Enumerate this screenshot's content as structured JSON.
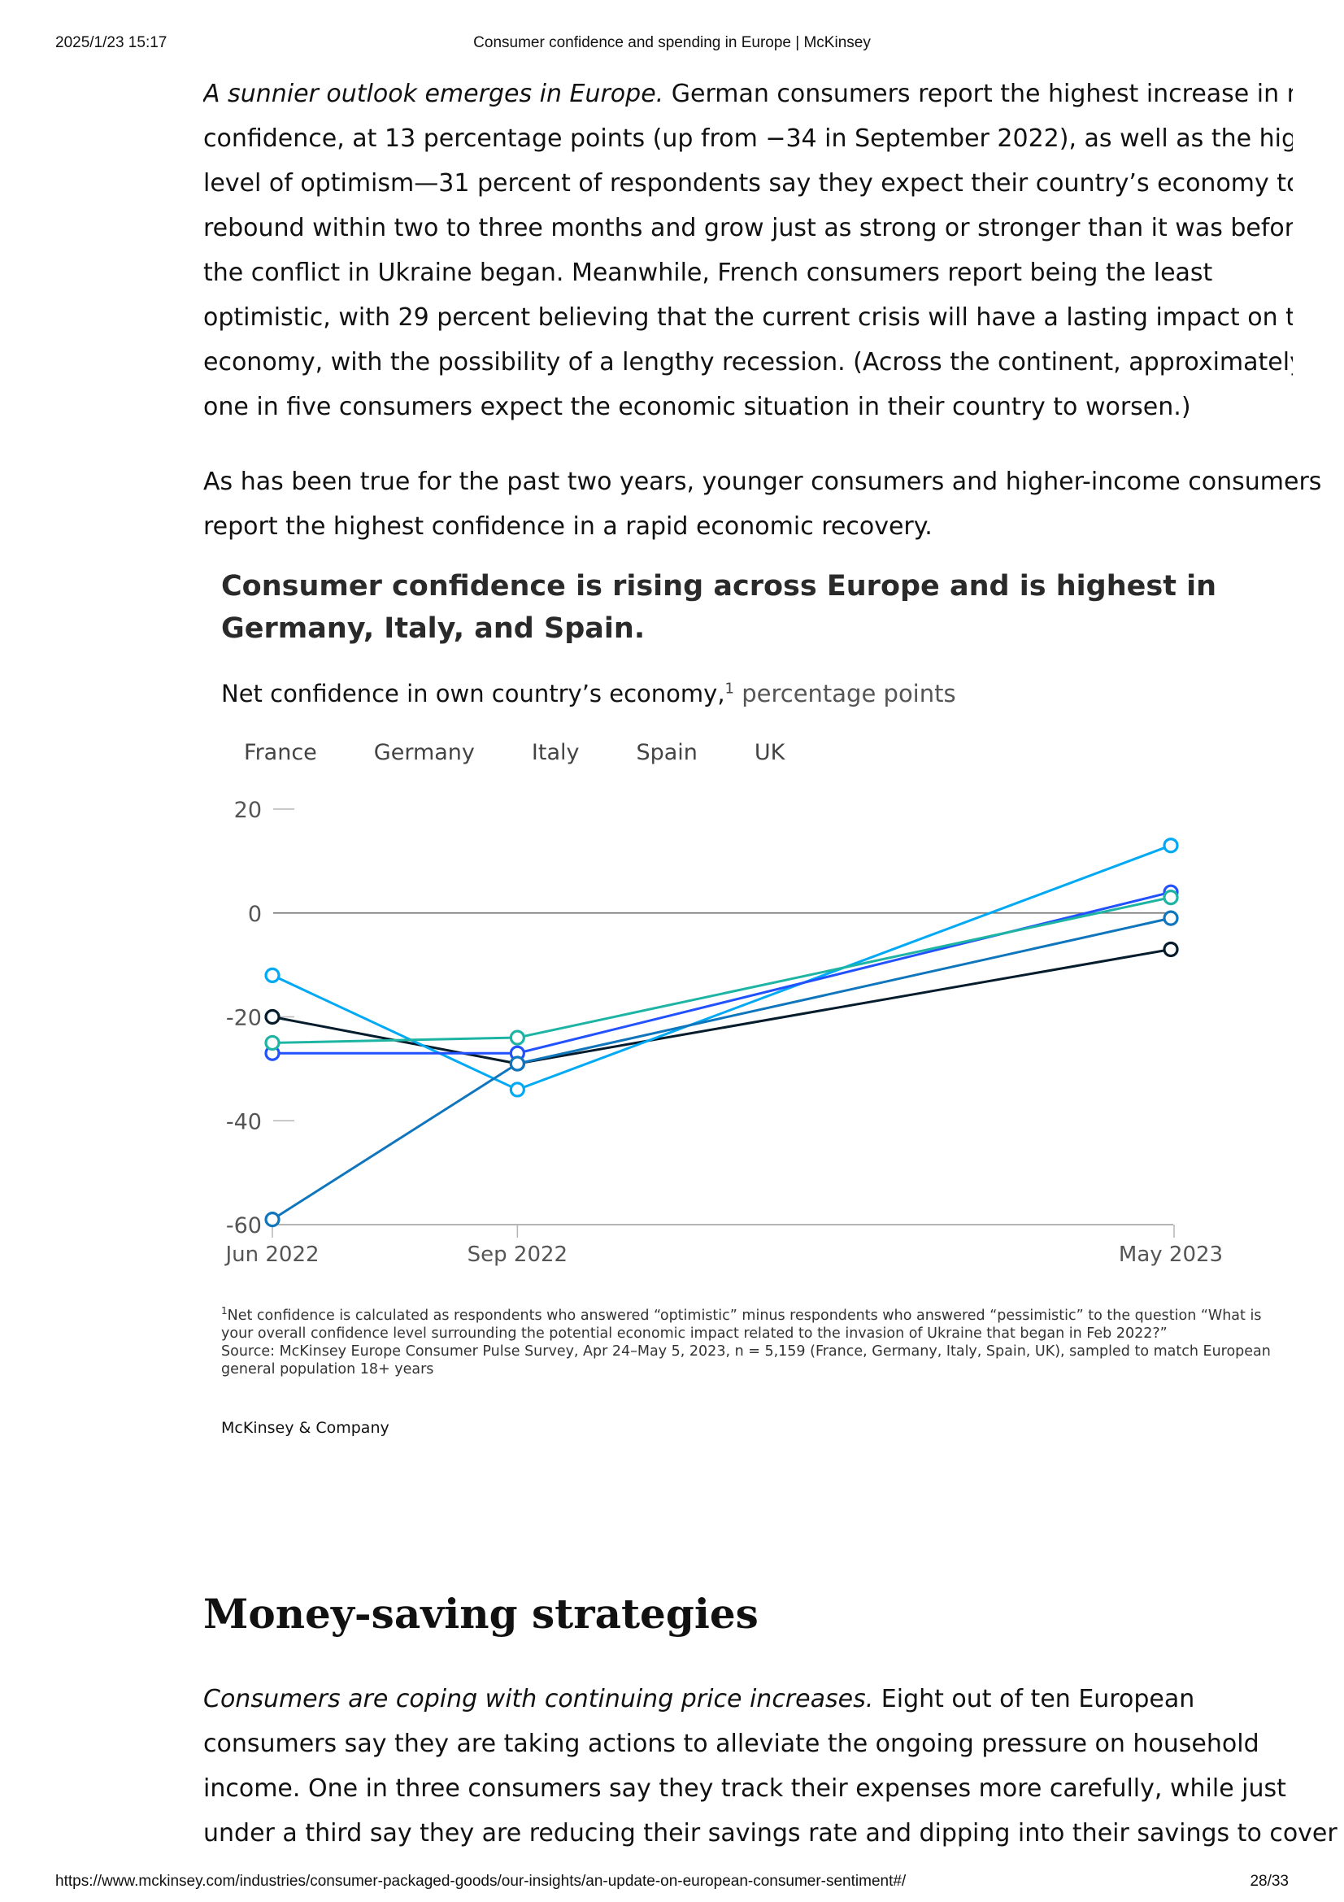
{
  "print_header": {
    "date": "2025/1/23 15:17",
    "title": "Consumer confidence and spending in Europe | McKinsey"
  },
  "print_footer": {
    "url": "https://www.mckinsey.com/industries/consumer-packaged-goods/our-insights/an-update-on-european-consumer-sentiment#/",
    "page": "28/33"
  },
  "article": {
    "p1_lead": "A sunnier outlook emerges in Europe.",
    "p1_line1_rest": " German consumers report the highest increase in net",
    "p1_lines": [
      "confidence, at 13 percentage points (up from −34 in September 2022), as well as the highest",
      "level of optimism—31 percent of respondents say they expect their country’s economy to",
      "rebound within two to three months and grow just as strong or stronger than it was before",
      "the conflict in Ukraine began. Meanwhile, French consumers report being the least",
      "optimistic, with 29 percent believing that the current crisis will have a lasting impact on the",
      "economy, with the possibility of a lengthy recession. (Across the continent, approximately",
      "one in five consumers expect the economic situation in their country to worsen.)"
    ],
    "p2_lines": [
      "As has been true for the past two years, younger consumers and higher-income consumers",
      "report the highest confidence in a rapid economic recovery."
    ],
    "section_heading": "Money-saving strategies",
    "p3_lead": "Consumers are coping with continuing price increases.",
    "p3_line1_rest": " Eight out of ten European",
    "p3_lines": [
      "consumers say they are taking actions to alleviate the ongoing pressure on household",
      "income. One in three consumers say they track their expenses more carefully, while just",
      "under a third say they are reducing their savings rate and dipping into their savings to cover"
    ]
  },
  "chart": {
    "title": "Consumer confidence is rising across Europe and is highest in Germany, Italy, and Spain.",
    "subtitle": "Net confidence in own country’s economy,",
    "subtitle_sup": "1",
    "subtitle_unit": " percentage points",
    "footnote_sup": "1",
    "footnote_text": "Net confidence is calculated as respondents who answered “optimistic” minus respondents who answered “pessimistic” to the question “What is your overall confidence level surrounding the potential economic impact related to the invasion of Ukraine that began in Feb 2022?”",
    "source": "Source: McKinsey Europe Consumer Pulse Survey, Apr 24–May 5, 2023, n = 5,159 (France, Germany, Italy, Spain, UK), sampled to match European general population 18+ years",
    "brand": "McKinsey & Company"
  },
  "chart_data": {
    "type": "line",
    "x": [
      "Jun 2022",
      "Sep 2022",
      "May 2023"
    ],
    "x_positions_months": [
      0,
      3,
      11
    ],
    "y_ticks": [
      "20",
      "0",
      "-20",
      "-40",
      "-60"
    ],
    "y_tick_values": [
      20,
      0,
      -20,
      -40,
      -60
    ],
    "ylim": [
      -60,
      20
    ],
    "series": [
      {
        "name": "France",
        "color": "#051c2c",
        "values": [
          -20,
          -29,
          -7
        ]
      },
      {
        "name": "Germany",
        "color": "#00a9f4",
        "values": [
          -12,
          -34,
          13
        ]
      },
      {
        "name": "Italy",
        "color": "#2251ff",
        "values": [
          -27,
          -27,
          4
        ]
      },
      {
        "name": "Spain",
        "color": "#1eb4a4",
        "values": [
          -25,
          -24,
          3
        ]
      },
      {
        "name": "UK",
        "color": "#0f75bc",
        "values": [
          -59,
          -29,
          -1
        ]
      }
    ]
  }
}
